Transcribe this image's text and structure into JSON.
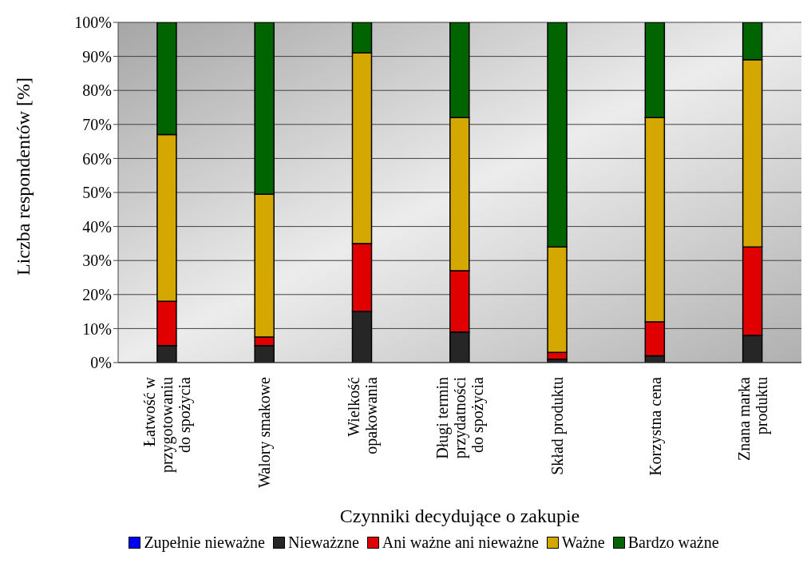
{
  "chart_data": {
    "type": "bar",
    "stacked": true,
    "xlabel": "Czynniki decydujące o zakupie",
    "ylabel": "Liczba respondentów [%]",
    "categories": [
      "Łatwość w przygotowaniu do spożycia",
      "Walory smakowe",
      "Wielkość opakowania",
      "Długi termin przydatności do spożycia",
      "Skład produktu",
      "Korzystna cena",
      "Znana marka produktu"
    ],
    "series": [
      {
        "name": "Zupełnie nieważne",
        "color": "#0000ff",
        "values": [
          0,
          0,
          0,
          0,
          0,
          0,
          0
        ]
      },
      {
        "name": "Nieważzne",
        "color": "#262626",
        "values": [
          5,
          5,
          15,
          9,
          1,
          2,
          8
        ]
      },
      {
        "name": "Ani ważne ani nieważne",
        "color": "#e00000",
        "values": [
          13,
          2.5,
          20,
          18,
          2,
          10,
          26
        ]
      },
      {
        "name": "Ważne",
        "color": "#d4a800",
        "values": [
          49,
          42,
          56,
          45,
          31,
          60,
          55
        ]
      },
      {
        "name": "Bardzo ważne",
        "color": "#006400",
        "values": [
          33,
          50.5,
          9,
          28,
          66,
          28,
          11
        ]
      }
    ],
    "ylim": [
      0,
      100
    ],
    "yticks": [
      {
        "value": 0,
        "label": "0%"
      },
      {
        "value": 10,
        "label": "10%"
      },
      {
        "value": 20,
        "label": "20%"
      },
      {
        "value": 30,
        "label": "30%"
      },
      {
        "value": 40,
        "label": "40%"
      },
      {
        "value": 50,
        "label": "50%"
      },
      {
        "value": 60,
        "label": "60%"
      },
      {
        "value": 70,
        "label": "70%"
      },
      {
        "value": 80,
        "label": "80%"
      },
      {
        "value": 90,
        "label": "90%"
      },
      {
        "value": 100,
        "label": "100%"
      }
    ],
    "grid": "y",
    "legend": "bottom"
  }
}
